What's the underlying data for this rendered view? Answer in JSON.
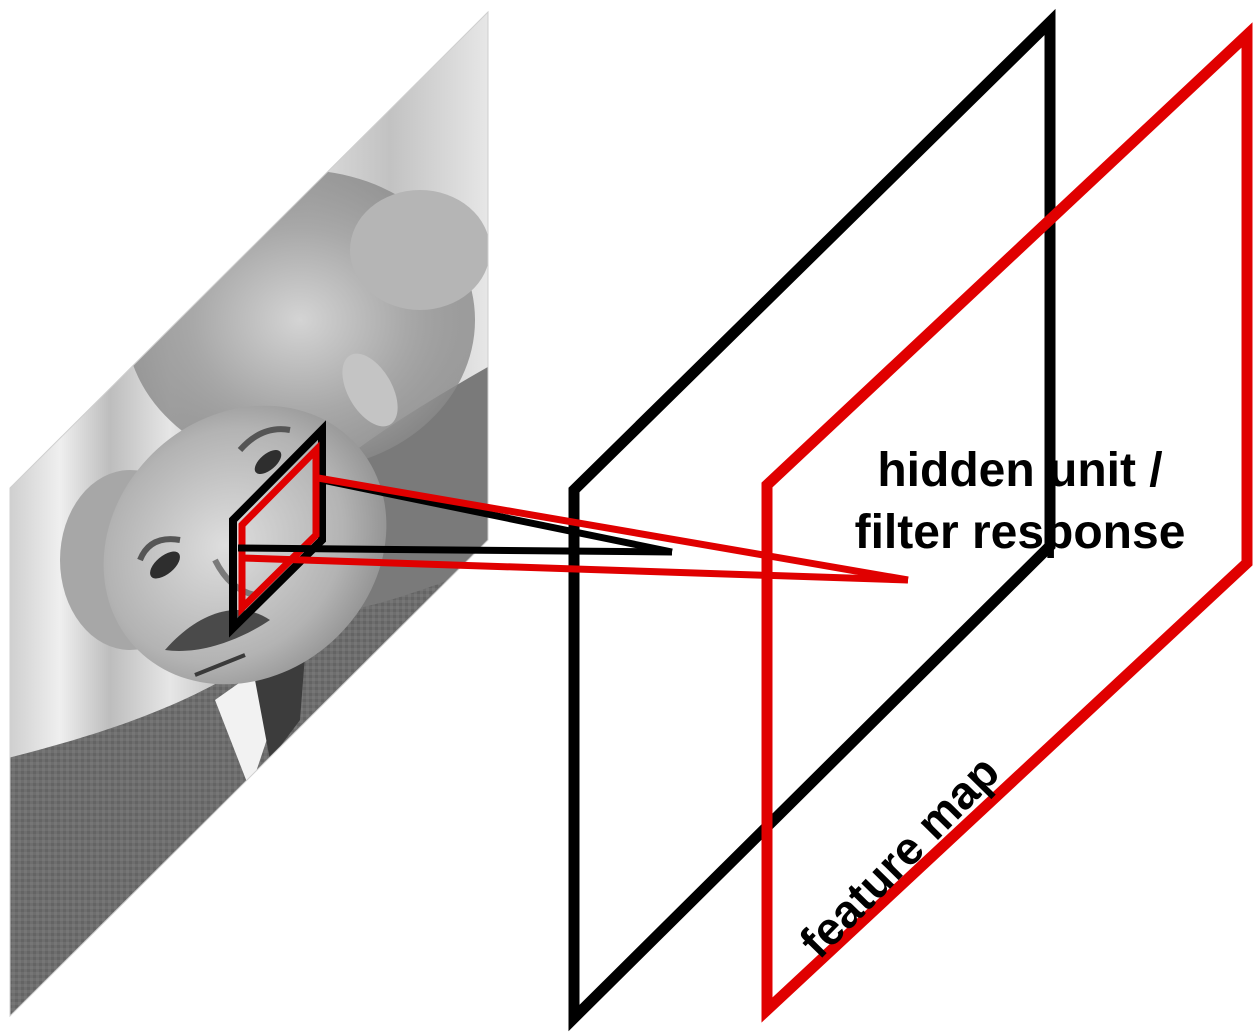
{
  "labels": {
    "hidden_unit_line1": "hidden unit /",
    "hidden_unit_line2": "filter response",
    "feature_map": "feature map"
  },
  "colors": {
    "input_frame": "#000000",
    "feature_map_frame": "#e00000",
    "receptive_field": "#e00000",
    "background": "#ffffff"
  },
  "icons": {
    "input_image": "grayscale-portrait-photo-parallelogram"
  }
}
